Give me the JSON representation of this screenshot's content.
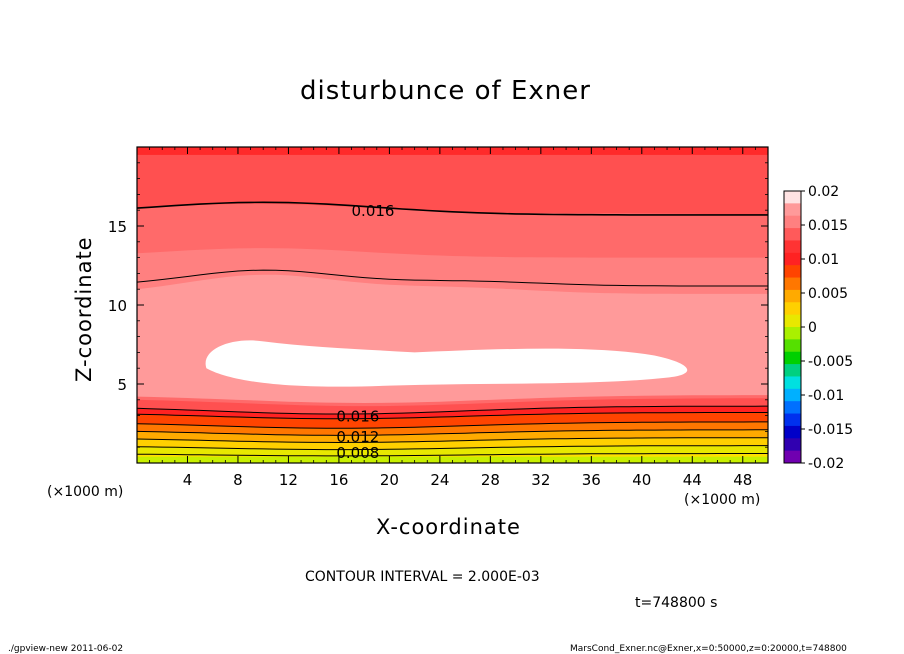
{
  "chart_data": {
    "type": "contour",
    "title": "disturbunce of Exner",
    "xlabel": "X-coordinate",
    "ylabel": "Z-coordinate",
    "x_unit": "(×1000 m)",
    "y_unit": "(×1000 m)",
    "xlim": [
      0,
      50
    ],
    "ylim": [
      0,
      20
    ],
    "x_ticks": [
      4,
      8,
      12,
      16,
      20,
      24,
      28,
      32,
      36,
      40,
      44,
      48
    ],
    "y_ticks": [
      5,
      10,
      15
    ],
    "contour_interval": "CONTOUR INTERVAL = 2.000E-03",
    "time_label": "t=748800 s",
    "contour_labels": [
      {
        "text": "0.016",
        "x": 18.7,
        "z": 16.0
      },
      {
        "text": "0.016",
        "x": 17.5,
        "z": 3.0
      },
      {
        "text": "0.012",
        "x": 17.5,
        "z": 1.7
      },
      {
        "text": "0.008",
        "x": 17.5,
        "z": 0.7
      }
    ],
    "colorbar": {
      "labels": [
        "0.02",
        "0.015",
        "0.01",
        "0.005",
        "0",
        "-0.005",
        "-0.01",
        "-0.015",
        "-0.02"
      ],
      "levels": [
        0.02,
        0.015,
        0.01,
        0.005,
        0,
        -0.005,
        -0.01,
        -0.015,
        -0.02
      ],
      "colors_top_to_bottom": [
        "#ffe3e3",
        "#ff9a9a",
        "#ff8080",
        "#ff5a5a",
        "#ff3333",
        "#ff2222",
        "#ff4400",
        "#ff7700",
        "#ffaa00",
        "#ffd000",
        "#e8e800",
        "#aaf000",
        "#55e000",
        "#00d000",
        "#00d080",
        "#00e0e0",
        "#00b0ff",
        "#0070ff",
        "#0030ee",
        "#0000c8",
        "#3000b0",
        "#7000b0"
      ]
    }
  },
  "footer": {
    "left": "./gpview-new  2011-06-02",
    "right": "MarsCond_Exner.nc@Exner,x=0:50000,z=0:20000,t=748800"
  }
}
